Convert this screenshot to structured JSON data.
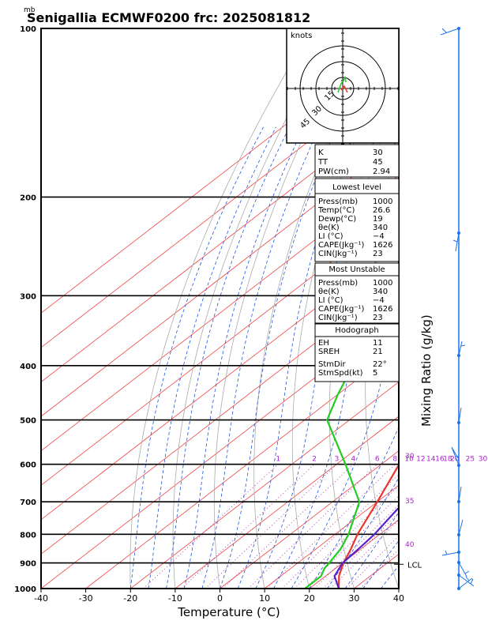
{
  "chart_data": {
    "type": "line",
    "title": "Senigallia ECMWF0200  frc: 2025081812",
    "y_unit_label": "mb",
    "xlabel": "Temperature (°C)",
    "right_axis_label": "Mixing Ratio (g/kg)",
    "x_ticks": [
      -40,
      -30,
      -20,
      -10,
      0,
      10,
      20,
      30,
      40
    ],
    "y_ticks": [
      100,
      200,
      300,
      400,
      500,
      600,
      700,
      800,
      900,
      1000
    ],
    "xlim": [
      -40,
      40
    ],
    "ylim": [
      1000,
      100
    ],
    "y_scale": "log",
    "mixing_ratio_labels": [
      "1",
      "2",
      "3",
      "4",
      "6",
      "8",
      "10",
      "12",
      "14",
      "16",
      "18",
      "20",
      "25",
      "30"
    ],
    "right_edge_labels": [
      "30",
      "35",
      "40"
    ],
    "lcl_label": "LCL",
    "grid": true,
    "series": [
      {
        "color": "#e8372a",
        "points": [
          [
            1000,
            26.6
          ],
          [
            950,
            23.0
          ],
          [
            900,
            20.2
          ],
          [
            850,
            17.8
          ],
          [
            800,
            15.0
          ],
          [
            700,
            10.0
          ],
          [
            600,
            4.0
          ],
          [
            500,
            -3.5
          ],
          [
            400,
            -14.0
          ],
          [
            300,
            -27.5
          ],
          [
            250,
            -36.0
          ],
          [
            200,
            -33.0
          ],
          [
            150,
            -28.0
          ],
          [
            100,
            -20.0
          ]
        ]
      },
      {
        "color": "#22cc22",
        "points": [
          [
            1000,
            19.0
          ],
          [
            950,
            19.0
          ],
          [
            920,
            17.5
          ],
          [
            900,
            17.0
          ],
          [
            850,
            15.5
          ],
          [
            800,
            13.0
          ],
          [
            700,
            6.0
          ],
          [
            600,
            -8.0
          ],
          [
            500,
            -25.0
          ],
          [
            450,
            -30.0
          ],
          [
            400,
            -35.0
          ],
          [
            350,
            -40.0
          ],
          [
            300,
            -46.0
          ],
          [
            250,
            -54.0
          ],
          [
            200,
            -63.0
          ],
          [
            150,
            -70.0
          ],
          [
            100,
            -76.0
          ]
        ]
      },
      {
        "color": "#5522cc",
        "points": [
          [
            1000,
            26.6
          ],
          [
            950,
            22.0
          ],
          [
            900,
            20.0
          ],
          [
            850,
            19.5
          ],
          [
            800,
            18.8
          ],
          [
            700,
            16.0
          ],
          [
            600,
            12.5
          ],
          [
            500,
            7.5
          ],
          [
            400,
            0.5
          ],
          [
            300,
            -10.0
          ],
          [
            250,
            -18.0
          ],
          [
            200,
            -28.0
          ],
          [
            150,
            -42.0
          ],
          [
            120,
            -55.0
          ]
        ]
      }
    ],
    "hodograph": {
      "label": "knots",
      "ring_labels": [
        "15",
        "30",
        "45"
      ]
    },
    "indices_box": {
      "top": [
        {
          "name": "K",
          "value": "30"
        },
        {
          "name": "TT",
          "value": "45"
        },
        {
          "name": "PW(cm)",
          "value": "2.94"
        }
      ],
      "lowest_level": {
        "header": "Lowest level",
        "rows": [
          {
            "name": "Press(mb)",
            "value": "1000"
          },
          {
            "name": "Temp(°C)",
            "value": "26.6"
          },
          {
            "name": "Dewp(°C)",
            "value": "19"
          },
          {
            "name": "θe(K)",
            "value": "340"
          },
          {
            "name": "LI (°C)",
            "value": "−4"
          },
          {
            "name": "CAPE(Jkg⁻¹)",
            "value": "1626"
          },
          {
            "name": "CIN(Jkg⁻¹)",
            "value": "23"
          }
        ]
      },
      "most_unstable": {
        "header": "Most Unstable",
        "rows": [
          {
            "name": "Press(mb)",
            "value": "1000"
          },
          {
            "name": "θe(K)",
            "value": "340"
          },
          {
            "name": "LI (°C)",
            "value": "−4"
          },
          {
            "name": "CAPE(Jkg⁻¹)",
            "value": "1626"
          },
          {
            "name": "CIN(Jkg⁻¹)",
            "value": "23"
          }
        ]
      },
      "hodograph_params": {
        "header": "Hodograph",
        "rows": [
          {
            "name": "EH",
            "value": "11"
          },
          {
            "name": "SREH",
            "value": "21"
          },
          {
            "name": "StmDir",
            "value": "22°"
          },
          {
            "name": "StmSpd(kt)",
            "value": "5"
          }
        ]
      }
    }
  }
}
